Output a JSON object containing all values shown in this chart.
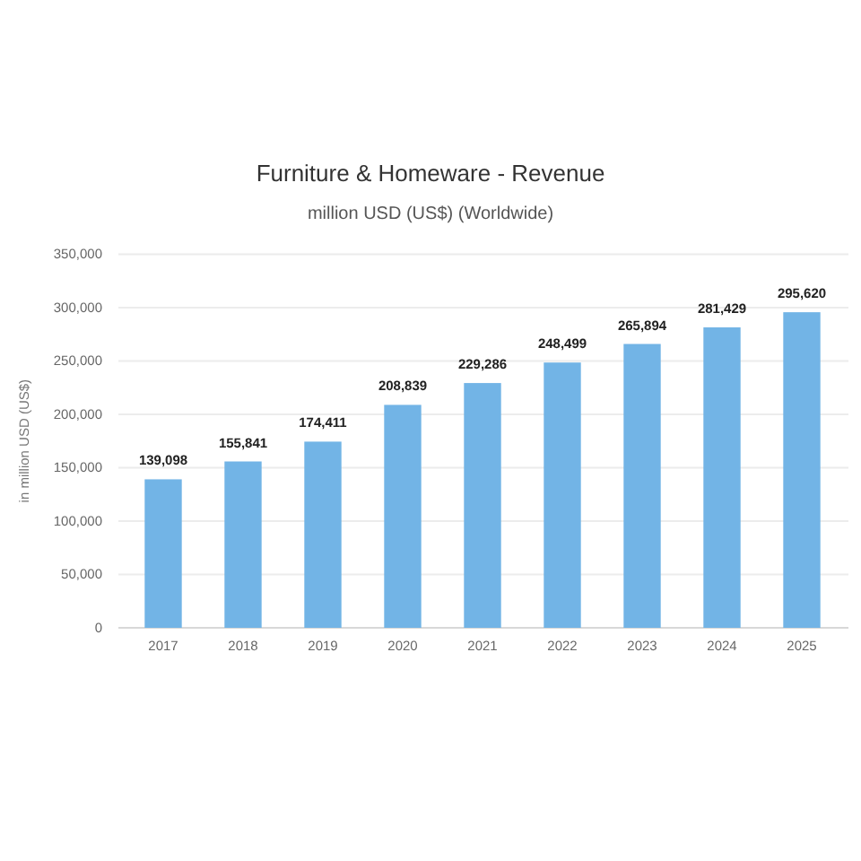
{
  "chart_data": {
    "type": "bar",
    "title": "Furniture & Homeware - Revenue",
    "subtitle": "million USD (US$) (Worldwide)",
    "ylabel": "in million USD (US$)",
    "categories": [
      "2017",
      "2018",
      "2019",
      "2020",
      "2021",
      "2022",
      "2023",
      "2024",
      "2025"
    ],
    "values": [
      139098,
      155841,
      174411,
      208839,
      229286,
      248499,
      265894,
      281429,
      295620
    ],
    "value_labels": [
      "139,098",
      "155,841",
      "174,411",
      "208,839",
      "229,286",
      "248,499",
      "265,894",
      "281,429",
      "295,620"
    ],
    "color": "#72b4e6",
    "ylim": [
      0,
      350000
    ],
    "yticks": [
      {
        "value": 0,
        "label": "0"
      },
      {
        "value": 50000,
        "label": "50,000"
      },
      {
        "value": 100000,
        "label": "100,000"
      },
      {
        "value": 150000,
        "label": "150,000"
      },
      {
        "value": 200000,
        "label": "200,000"
      },
      {
        "value": 250000,
        "label": "250,000"
      },
      {
        "value": 300000,
        "label": "300,000"
      },
      {
        "value": 350000,
        "label": "350,000"
      }
    ],
    "grid": "y"
  }
}
